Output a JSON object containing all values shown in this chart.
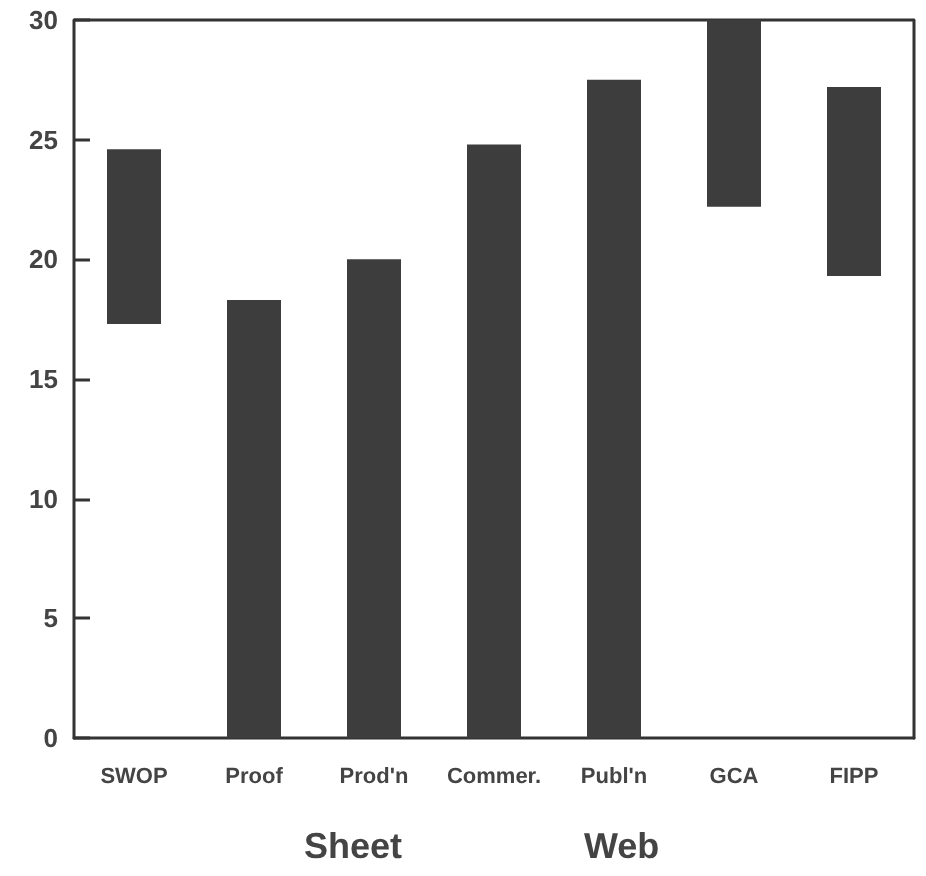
{
  "chart_data": {
    "type": "bar",
    "categories": [
      "SWOP",
      "Proof",
      "Prod'n",
      "Commer.",
      "Publ'n",
      "GCA",
      "FIPP"
    ],
    "values": [
      7.3,
      18.3,
      20.0,
      24.8,
      27.5,
      7.8,
      7.9
    ],
    "base": [
      17.3,
      0,
      0,
      0,
      0,
      22.2,
      19.3
    ],
    "color": "#3d3d3d",
    "ylim": [
      0,
      30
    ],
    "yticks": [
      0,
      5,
      10,
      15,
      20,
      25,
      30
    ],
    "grid": false,
    "annotations": [
      "Sheet",
      "Web"
    ]
  }
}
